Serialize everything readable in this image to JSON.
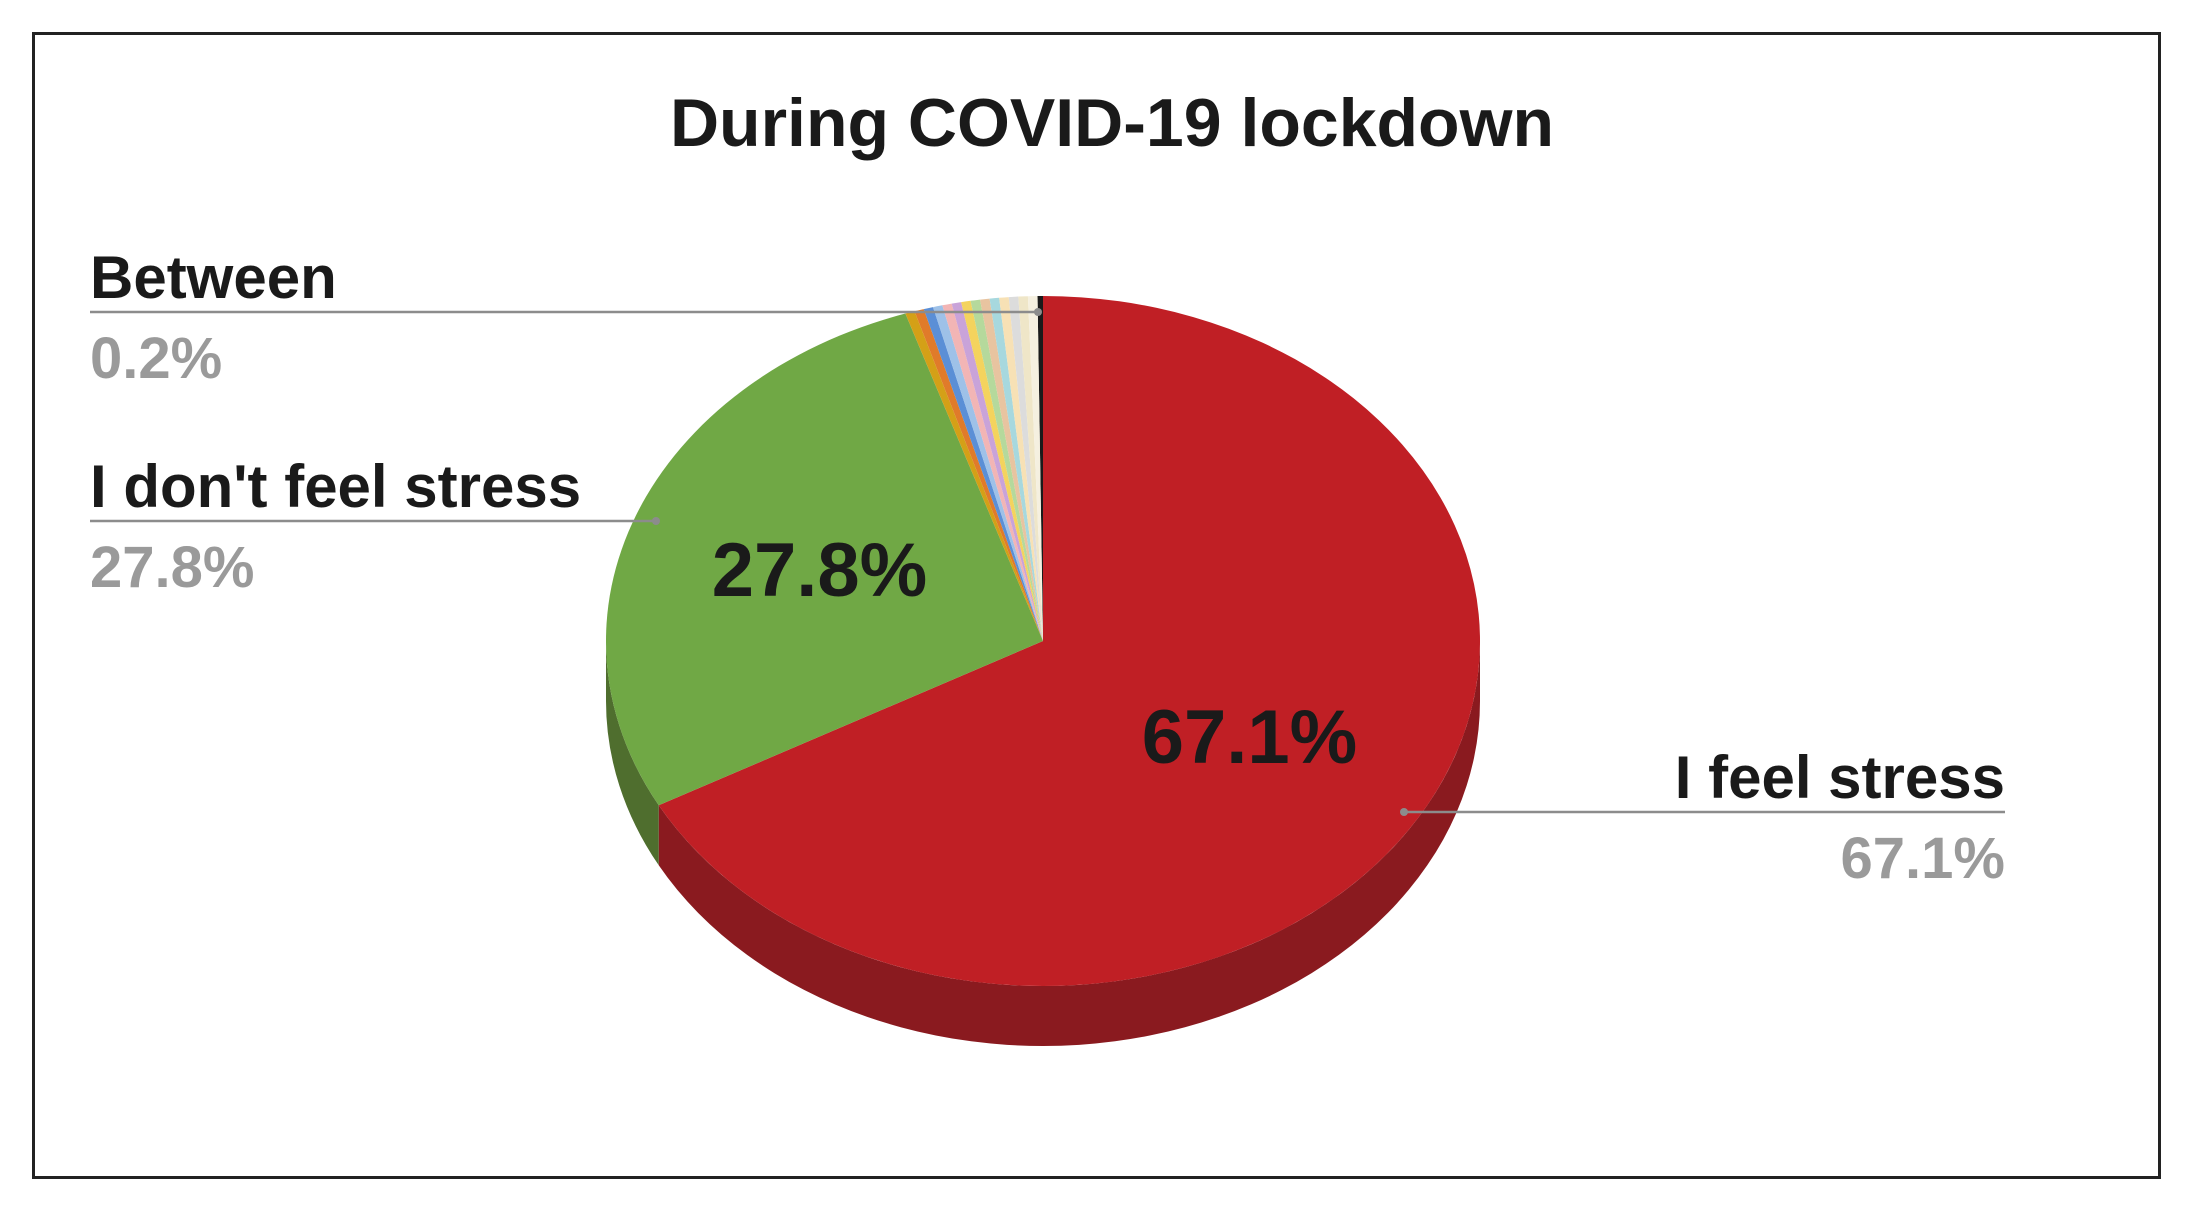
{
  "chart_data": {
    "type": "pie",
    "title": "During COVID-19 lockdown",
    "three_d": true,
    "categories": [
      "I feel stress",
      "I don't feel stress",
      "Between"
    ],
    "values": [
      67.1,
      27.8,
      0.2
    ],
    "value_labels": [
      "67.1%",
      "27.8%",
      "0.2%"
    ],
    "colors": [
      "#c01f25",
      "#70a845",
      "#1a1a1a"
    ],
    "side_colors": [
      "#8a1a1f",
      "#4f6e2e",
      "#111111"
    ],
    "minor_slice_colors": [
      "#d4a017",
      "#e07b2a",
      "#5b8fd6",
      "#9ec1e8",
      "#f2b5b5",
      "#c9a3d9",
      "#f4d35e",
      "#b5d99c",
      "#e8c4a0",
      "#a7d8de",
      "#f7e1b5",
      "#dcdcdc",
      "#efe6c8",
      "#f5f0e0"
    ],
    "legend_position": "callouts"
  }
}
